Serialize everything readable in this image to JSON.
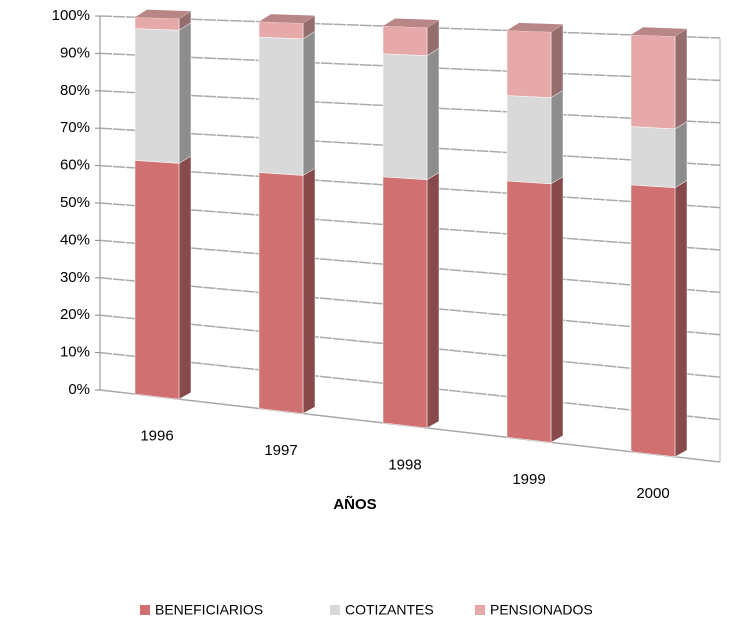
{
  "chart_data": {
    "type": "bar3d_stacked",
    "x_label": "AÑOS",
    "categories": [
      "1996",
      "1997",
      "1998",
      "1999",
      "2000"
    ],
    "series": [
      {
        "name": "BENEFICIARIOS",
        "color": "#d07070",
        "values": [
          62,
          61,
          62,
          63,
          64
        ]
      },
      {
        "name": "COTIZANTES",
        "color": "#d9d9d9",
        "values": [
          35,
          35,
          31,
          21,
          14
        ]
      },
      {
        "name": "PENSIONADOS",
        "color": "#e6a8a8",
        "values": [
          3,
          4,
          7,
          16,
          22
        ]
      }
    ],
    "ylim": [
      0,
      100
    ],
    "yticks": [
      {
        "value": 0,
        "label": "0%"
      },
      {
        "value": 10,
        "label": "10%"
      },
      {
        "value": 20,
        "label": "20%"
      },
      {
        "value": 30,
        "label": "30%"
      },
      {
        "value": 40,
        "label": "40%"
      },
      {
        "value": 50,
        "label": "50%"
      },
      {
        "value": 60,
        "label": "60%"
      },
      {
        "value": 70,
        "label": "70%"
      },
      {
        "value": 80,
        "label": "80%"
      },
      {
        "value": 90,
        "label": "90%"
      },
      {
        "value": 100,
        "label": "100%"
      }
    ],
    "grid": true,
    "legend": "bottom"
  }
}
